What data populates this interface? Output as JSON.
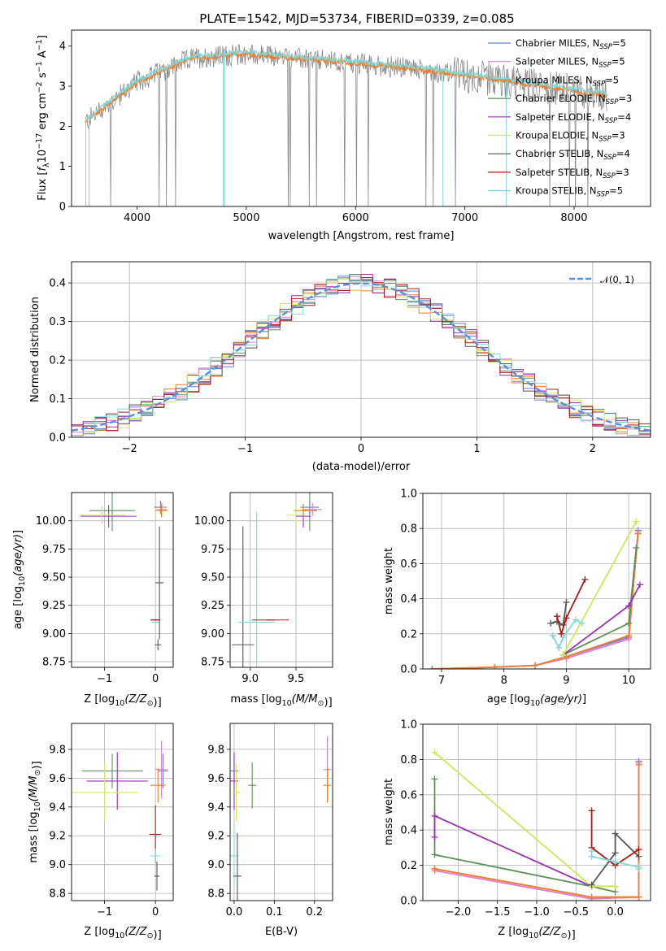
{
  "figure": {
    "title": "PLATE=1542, MJD=53734, FIBERID=0339, z=0.085"
  },
  "legend": [
    {
      "label": "Chabrier MILES, N",
      "sub": "SSP",
      "suffix": "=5",
      "color": "#6a7fd6"
    },
    {
      "label": "Salpeter MILES, N",
      "sub": "SSP",
      "suffix": "=5",
      "color": "#e07fc8"
    },
    {
      "label": "Kroupa MILES, N",
      "sub": "SSP",
      "suffix": "=5",
      "color": "#f07d2a"
    },
    {
      "label": "Chabrier ELODIE, N",
      "sub": "SSP",
      "suffix": "=3",
      "color": "#5c8f5c"
    },
    {
      "label": "Salpeter ELODIE, N",
      "sub": "SSP",
      "suffix": "=4",
      "color": "#9a2fb4"
    },
    {
      "label": "Kroupa ELODIE, N",
      "sub": "SSP",
      "suffix": "=3",
      "color": "#cde85a"
    },
    {
      "label": "Chabrier STELIB, N",
      "sub": "SSP",
      "suffix": "=4",
      "color": "#555555"
    },
    {
      "label": "Salpeter STELIB, N",
      "sub": "SSP",
      "suffix": "=3",
      "color": "#b01818"
    },
    {
      "label": "Kroupa STELIB, N",
      "sub": "SSP",
      "suffix": "=5",
      "color": "#7fd8d8"
    }
  ],
  "chart_data": [
    {
      "id": "spectrum",
      "type": "line",
      "xlabel": "wavelength [Angstrom, rest frame]",
      "ylabel_parts": {
        "a": "Flux [",
        "f": "f",
        "fsub": "λ",
        "mid": "10",
        "exp1": "−17",
        "rest": " erg cm",
        "exp2": "−2",
        "s": " s",
        "exp3": "−1",
        "A": " A",
        "exp4": "−1",
        "end": "]"
      },
      "xlim": [
        3400,
        8700
      ],
      "ylim": [
        0,
        4.4
      ],
      "xticks": [
        "4000",
        "5000",
        "6000",
        "7000",
        "8000"
      ],
      "yticks": [
        "0",
        "1",
        "2",
        "3",
        "4"
      ],
      "data_color": "#888888",
      "model_color": "#f07d2a",
      "model_color2": "#7fd8d8"
    },
    {
      "id": "residuals",
      "type": "line",
      "xlabel": "(data-model)/error",
      "ylabel": "Normed distribution",
      "xlim": [
        -2.5,
        2.5
      ],
      "ylim": [
        0,
        0.455
      ],
      "xticks": [
        "−2",
        "−1",
        "0",
        "1",
        "2"
      ],
      "yticks": [
        "0.0",
        "0.1",
        "0.2",
        "0.3",
        "0.4"
      ],
      "normal_label": "𝒩(0, 1)",
      "normal_color": "#5b8fd8"
    },
    {
      "id": "z-age",
      "type": "scatter",
      "xlabel_a": "Z [log",
      "xlabel_sub": "10",
      "xlabel_b": "(Z/Z",
      "xlabel_c": "⊙",
      "xlabel_d": ")]",
      "ylabel": "age  [log10(age/yr)]",
      "xlim": [
        -1.65,
        0.35
      ],
      "ylim": [
        8.7,
        10.25
      ],
      "xticks": [
        "−1",
        "0"
      ],
      "yticks": [
        "8.75",
        "9.00",
        "9.25",
        "9.50",
        "9.75",
        "10.00"
      ],
      "points": [
        {
          "model": "Chabrier ELODIE",
          "x": -0.85,
          "y": 10.09,
          "xerr": 0.45,
          "yerr": 0.18
        },
        {
          "model": "Salpeter ELODIE",
          "x": -0.92,
          "y": 10.04,
          "xerr": 0.55,
          "yerr": 0.1
        },
        {
          "model": "Kroupa ELODIE",
          "x": -1.05,
          "y": 10.05,
          "xerr": 0.45,
          "yerr": 0.08
        },
        {
          "model": "Chabrier MILES",
          "x": 0.1,
          "y": 10.12,
          "xerr": 0.12,
          "yerr": 0.06
        },
        {
          "model": "Salpeter MILES",
          "x": 0.12,
          "y": 10.1,
          "xerr": 0.1,
          "yerr": 0.06
        },
        {
          "model": "Kroupa MILES",
          "x": 0.12,
          "y": 10.09,
          "xerr": 0.12,
          "yerr": 0.06
        },
        {
          "model": "Chabrier STELIB",
          "x": 0.05,
          "y": 8.9,
          "xerr": 0.06,
          "yerr": 0.05
        },
        {
          "model": "Salpeter STELIB",
          "x": 0.0,
          "y": 9.12,
          "xerr": 0.1,
          "yerr": 0.0
        },
        {
          "model": "Kroupa STELIB",
          "x": 0.0,
          "y": 9.1,
          "xerr": 0.06,
          "yerr": 0.0
        },
        {
          "model": "Chabrier STELIB",
          "x": 0.08,
          "y": 9.45,
          "xerr": 0.0,
          "yerr": 0.5
        }
      ]
    },
    {
      "id": "mass-age",
      "type": "scatter",
      "xlabel_a": "mass [log",
      "xlabel_sub": "10",
      "xlabel_b": "(M/M",
      "xlabel_c": "⊙",
      "xlabel_d": ")]",
      "xlim": [
        8.78,
        9.9
      ],
      "ylim": [
        8.7,
        10.25
      ],
      "xticks": [
        "9.0",
        "9.5"
      ],
      "yticks": [
        "8.75",
        "9.00",
        "9.25",
        "9.50",
        "9.75",
        "10.00"
      ],
      "points": [
        {
          "model": "Chabrier STELIB",
          "x": 8.92,
          "y": 8.9,
          "xerr": 0.12,
          "yerr": 1.05
        },
        {
          "model": "Kroupa STELIB",
          "x": 9.07,
          "y": 9.1,
          "xerr": 0.2,
          "yerr": 0.98
        },
        {
          "model": "Salpeter STELIB",
          "x": 9.22,
          "y": 9.12,
          "xerr": 0.2,
          "yerr": 0.0
        },
        {
          "model": "Kroupa ELODIE",
          "x": 9.5,
          "y": 10.05,
          "xerr": 0.1,
          "yerr": 0.08
        },
        {
          "model": "Chabrier ELODIE",
          "x": 9.65,
          "y": 10.09,
          "xerr": 0.08,
          "yerr": 0.18
        },
        {
          "model": "Salpeter ELODIE",
          "x": 9.58,
          "y": 10.04,
          "xerr": 0.08,
          "yerr": 0.1
        },
        {
          "model": "Chabrier MILES",
          "x": 9.65,
          "y": 10.12,
          "xerr": 0.1,
          "yerr": 0.06
        },
        {
          "model": "Salpeter MILES",
          "x": 9.68,
          "y": 10.1,
          "xerr": 0.1,
          "yerr": 0.06
        },
        {
          "model": "Kroupa MILES",
          "x": 9.58,
          "y": 10.09,
          "xerr": 0.1,
          "yerr": 0.06
        }
      ]
    },
    {
      "id": "age-weight",
      "type": "line",
      "xlabel": "age  [log10(age/yr)]",
      "ylabel": "mass weight",
      "xlim": [
        6.7,
        10.35
      ],
      "ylim": [
        0,
        1.0
      ],
      "xticks": [
        "7",
        "8",
        "9",
        "10"
      ],
      "yticks": [
        "0.0",
        "0.2",
        "0.4",
        "0.6",
        "0.8",
        "1.0"
      ],
      "series": [
        {
          "model": "Chabrier MILES",
          "x": [
            6.85,
            7.85,
            8.5,
            9.0,
            10.0,
            10.15
          ],
          "y": [
            0.0,
            0.01,
            0.02,
            0.07,
            0.18,
            0.79
          ]
        },
        {
          "model": "Salpeter MILES",
          "x": [
            6.85,
            7.85,
            8.5,
            9.0,
            10.0,
            10.15
          ],
          "y": [
            0.0,
            0.01,
            0.02,
            0.06,
            0.17,
            0.78
          ]
        },
        {
          "model": "Kroupa MILES",
          "x": [
            6.85,
            7.85,
            8.5,
            9.0,
            10.0,
            10.15
          ],
          "y": [
            0.0,
            0.01,
            0.02,
            0.07,
            0.19,
            0.77
          ]
        },
        {
          "model": "Chabrier ELODIE",
          "x": [
            8.95,
            10.0,
            10.12
          ],
          "y": [
            0.08,
            0.26,
            0.69
          ]
        },
        {
          "model": "Salpeter ELODIE",
          "x": [
            8.95,
            10.0,
            10.18
          ],
          "y": [
            0.08,
            0.36,
            0.48
          ]
        },
        {
          "model": "Kroupa ELODIE",
          "x": [
            8.95,
            10.12
          ],
          "y": [
            0.08,
            0.84
          ]
        },
        {
          "model": "Chabrier STELIB",
          "x": [
            8.75,
            8.85,
            8.95,
            9.0
          ],
          "y": [
            0.26,
            0.27,
            0.25,
            0.38
          ]
        },
        {
          "model": "Salpeter STELIB",
          "x": [
            8.85,
            8.92,
            9.0,
            9.3
          ],
          "y": [
            0.3,
            0.2,
            0.29,
            0.51
          ]
        },
        {
          "model": "Kroupa STELIB",
          "x": [
            8.78,
            8.88,
            8.95,
            9.15,
            9.25
          ],
          "y": [
            0.19,
            0.12,
            0.18,
            0.28,
            0.26
          ]
        }
      ]
    },
    {
      "id": "z-mass",
      "type": "scatter",
      "xlabel_a": "Z [log",
      "xlabel_sub": "10",
      "xlabel_b": "(Z/Z",
      "xlabel_c": "⊙",
      "xlabel_d": ")]",
      "ylabel_a": "mass [log",
      "ylabel_sub": "10",
      "ylabel_b": "(M/M",
      "ylabel_c": "⊙",
      "ylabel_d": ")]",
      "xlim": [
        -1.65,
        0.35
      ],
      "ylim": [
        8.75,
        9.98
      ],
      "xticks": [
        "−1",
        "0"
      ],
      "yticks": [
        "8.8",
        "9.0",
        "9.2",
        "9.4",
        "9.6",
        "9.8"
      ],
      "points": [
        {
          "model": "Chabrier ELODIE",
          "x": -0.85,
          "y": 9.65,
          "xerr": 0.6,
          "yerr": 0.12
        },
        {
          "model": "Salpeter ELODIE",
          "x": -0.75,
          "y": 9.58,
          "xerr": 0.6,
          "yerr": 0.2
        },
        {
          "model": "Kroupa ELODIE",
          "x": -1.0,
          "y": 9.5,
          "xerr": 0.65,
          "yerr": 0.2
        },
        {
          "model": "Chabrier MILES",
          "x": 0.15,
          "y": 9.65,
          "xerr": 0.1,
          "yerr": 0.12
        },
        {
          "model": "Salpeter MILES",
          "x": 0.12,
          "y": 9.66,
          "xerr": 0.12,
          "yerr": 0.2
        },
        {
          "model": "Kroupa MILES",
          "x": 0.05,
          "y": 9.55,
          "xerr": 0.15,
          "yerr": 0.12
        },
        {
          "model": "Salpeter STELIB",
          "x": 0.0,
          "y": 9.21,
          "xerr": 0.12,
          "yerr": 0.2
        },
        {
          "model": "Kroupa STELIB",
          "x": 0.0,
          "y": 9.06,
          "xerr": 0.1,
          "yerr": 0.05
        },
        {
          "model": "Chabrier STELIB",
          "x": 0.03,
          "y": 8.92,
          "xerr": 0.05,
          "yerr": 0.1
        }
      ]
    },
    {
      "id": "ebv-mass",
      "type": "scatter",
      "xlabel": "E(B-V)",
      "xlim": [
        -0.01,
        0.245
      ],
      "ylim": [
        8.75,
        9.98
      ],
      "xticks": [
        "0.0",
        "0.1",
        "0.2"
      ],
      "yticks": [
        "8.8",
        "9.0",
        "9.2",
        "9.4",
        "9.6",
        "9.8"
      ],
      "points": [
        {
          "model": "Chabrier MILES",
          "x": 0.0,
          "y": 9.65,
          "xerr": 0.0,
          "yerr": 0.12
        },
        {
          "model": "Salpeter ELODIE",
          "x": 0.0,
          "y": 9.58,
          "xerr": 0.0,
          "yerr": 0.2
        },
        {
          "model": "Kroupa ELODIE",
          "x": 0.005,
          "y": 9.5,
          "xerr": 0.0,
          "yerr": 0.2
        },
        {
          "model": "Kroupa STELIB",
          "x": 0.0,
          "y": 9.06,
          "xerr": 0.0,
          "yerr": 0.2
        },
        {
          "model": "Chabrier STELIB",
          "x": 0.008,
          "y": 8.92,
          "xerr": 0.0,
          "yerr": 0.3
        },
        {
          "model": "Chabrier ELODIE",
          "x": 0.045,
          "y": 9.55,
          "xerr": 0.0,
          "yerr": 0.16
        },
        {
          "model": "Salpeter MILES",
          "x": 0.232,
          "y": 9.66,
          "xerr": 0.0,
          "yerr": 0.23
        },
        {
          "model": "Kroupa MILES",
          "x": 0.232,
          "y": 9.55,
          "xerr": 0.0,
          "yerr": 0.12
        }
      ]
    },
    {
      "id": "z-weight",
      "type": "line",
      "xlabel_a": "Z [log",
      "xlabel_sub": "10",
      "xlabel_b": "(Z/Z",
      "xlabel_c": "⊙",
      "xlabel_d": ")]",
      "ylabel": "mass weight",
      "xlim": [
        -2.45,
        0.45
      ],
      "ylim": [
        0,
        1.0
      ],
      "xticks": [
        "−2.0",
        "−1.5",
        "−1.0",
        "−0.5",
        "0.0"
      ],
      "yticks": [
        "0.0",
        "0.2",
        "0.4",
        "0.6",
        "0.8",
        "1.0"
      ],
      "series": [
        {
          "model": "Chabrier MILES",
          "x": [
            -2.3,
            -0.3,
            0.3,
            0.3
          ],
          "y": [
            0.18,
            0.02,
            0.02,
            0.79
          ]
        },
        {
          "model": "Salpeter MILES",
          "x": [
            -2.3,
            -0.3,
            0.3,
            0.3
          ],
          "y": [
            0.17,
            0.01,
            0.02,
            0.78
          ]
        },
        {
          "model": "Kroupa MILES",
          "x": [
            -2.3,
            -0.3,
            0.3,
            0.3
          ],
          "y": [
            0.18,
            0.02,
            0.02,
            0.77
          ]
        },
        {
          "model": "Chabrier ELODIE",
          "x": [
            -2.3,
            -2.3,
            -0.3,
            0.0
          ],
          "y": [
            0.69,
            0.26,
            0.08,
            0.05
          ]
        },
        {
          "model": "Salpeter ELODIE",
          "x": [
            -2.3,
            -2.3,
            -0.3,
            0.0
          ],
          "y": [
            0.36,
            0.48,
            0.08,
            0.08
          ]
        },
        {
          "model": "Kroupa ELODIE",
          "x": [
            -2.3,
            -0.3,
            0.0
          ],
          "y": [
            0.84,
            0.08,
            0.08
          ]
        },
        {
          "model": "Chabrier STELIB",
          "x": [
            -0.3,
            0.0,
            0.0,
            0.3
          ],
          "y": [
            0.09,
            0.27,
            0.38,
            0.25
          ]
        },
        {
          "model": "Salpeter STELIB",
          "x": [
            -0.3,
            -0.3,
            0.0,
            0.3
          ],
          "y": [
            0.51,
            0.3,
            0.2,
            0.29
          ]
        },
        {
          "model": "Kroupa STELIB",
          "x": [
            -0.3,
            -0.3,
            0.0,
            0.3,
            0.3
          ],
          "y": [
            0.28,
            0.25,
            0.22,
            0.19,
            0.18
          ]
        }
      ]
    }
  ]
}
